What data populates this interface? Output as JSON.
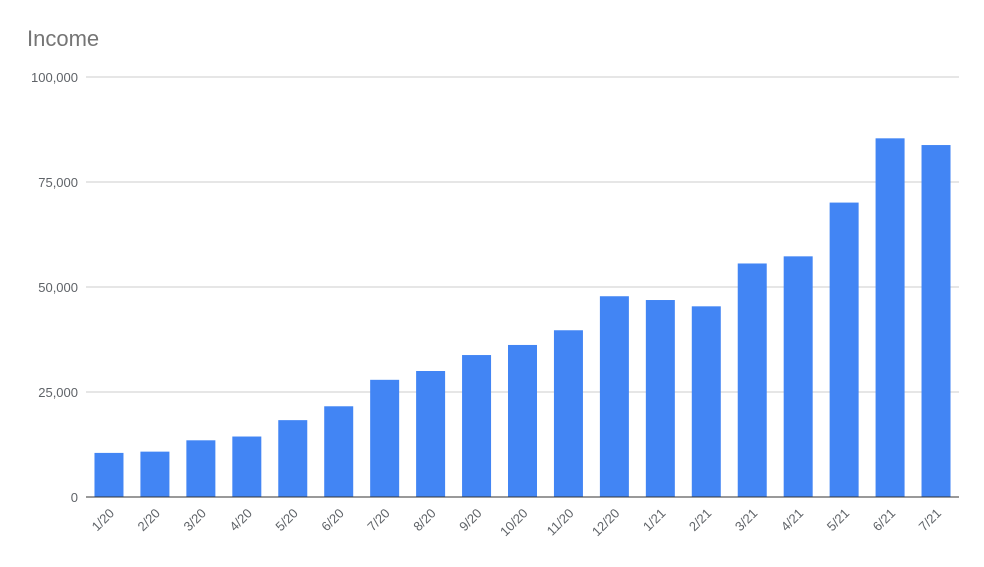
{
  "chart_data": {
    "type": "bar",
    "title": "Income",
    "xlabel": "",
    "ylabel": "",
    "categories": [
      "1/20",
      "2/20",
      "3/20",
      "4/20",
      "5/20",
      "6/20",
      "7/20",
      "8/20",
      "9/20",
      "10/20",
      "11/20",
      "12/20",
      "1/21",
      "2/21",
      "3/21",
      "4/21",
      "5/21",
      "6/21",
      "7/21"
    ],
    "series": [
      {
        "values": [
          10500,
          10800,
          13500,
          14400,
          18300,
          21600,
          27900,
          30000,
          33800,
          36200,
          39700,
          47800,
          46900,
          45400,
          55600,
          57300,
          70100,
          85400,
          83800
        ],
        "color": "#4285f4"
      }
    ],
    "ylim": [
      0,
      100000
    ],
    "yticks": [
      0,
      25000,
      50000,
      75000,
      100000
    ],
    "ytick_labels": [
      "0",
      "25,000",
      "50,000",
      "75,000",
      "100,000"
    ],
    "grid": true,
    "legend": "none"
  }
}
